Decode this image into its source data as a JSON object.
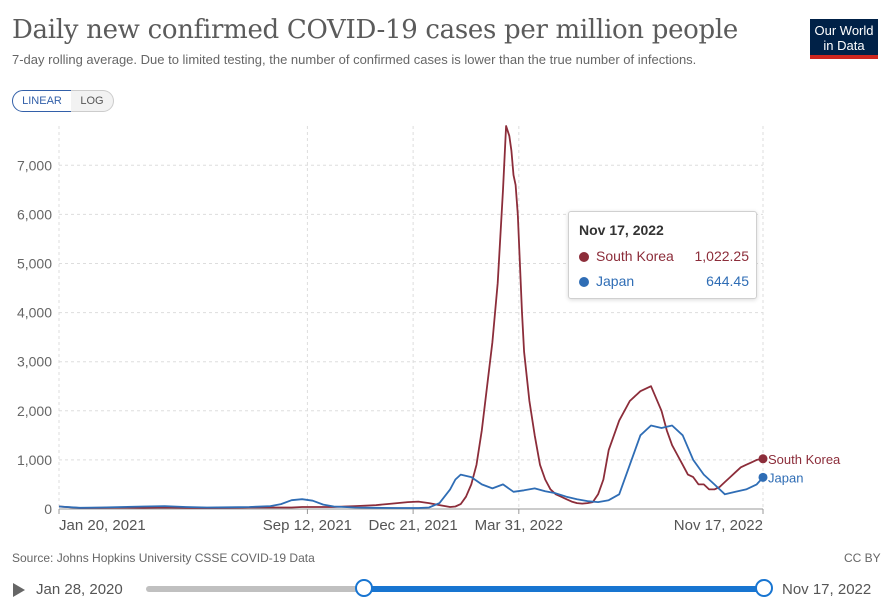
{
  "header": {
    "title": "Daily new confirmed COVID-19 cases per million people",
    "subtitle": "7-day rolling average. Due to limited testing, the number of confirmed cases is lower than the true number of infections.",
    "logo_line1": "Our World",
    "logo_line2": "in Data"
  },
  "controls": {
    "linear_label": "LINEAR",
    "log_label": "LOG"
  },
  "tooltip": {
    "date": "Nov 17, 2022",
    "rows": [
      {
        "name": "South Korea",
        "value": "1,022.25",
        "color": "#8c2d3a"
      },
      {
        "name": "Japan",
        "value": "644.45",
        "color": "#2f6db5"
      }
    ]
  },
  "footer": {
    "source": "Source: Johns Hopkins University CSSE COVID-19 Data",
    "license": "CC BY"
  },
  "timeline": {
    "start_label": "Jan 28, 2020",
    "end_label": "Nov 17, 2022",
    "selected_start_fraction": 0.352,
    "selected_end_fraction": 1.0
  },
  "chart_data": {
    "type": "line",
    "title": "Daily new confirmed COVID-19 cases per million people",
    "xlabel": "",
    "ylabel": "",
    "x_range_days": [
      0,
      666
    ],
    "x_start_date": "2021-01-20",
    "ylim": [
      0,
      7800
    ],
    "yticks": [
      0,
      1000,
      2000,
      3000,
      4000,
      5000,
      6000,
      7000
    ],
    "ytick_labels": [
      "0",
      "1,000",
      "2,000",
      "3,000",
      "4,000",
      "5,000",
      "6,000",
      "7,000"
    ],
    "xticks": [
      {
        "day": 0,
        "label": "Jan 20, 2021"
      },
      {
        "day": 235,
        "label": "Sep 12, 2021"
      },
      {
        "day": 335,
        "label": "Dec 21, 2021"
      },
      {
        "day": 435,
        "label": "Mar 31, 2022"
      },
      {
        "day": 666,
        "label": "Nov 17, 2022"
      }
    ],
    "grid": true,
    "series": [
      {
        "name": "South Korea",
        "color": "#8c2d3a",
        "end_value": 1022.25,
        "days": [
          0,
          20,
          40,
          60,
          80,
          100,
          120,
          140,
          160,
          180,
          200,
          220,
          230,
          240,
          250,
          260,
          270,
          280,
          290,
          300,
          310,
          320,
          330,
          340,
          350,
          360,
          370,
          375,
          380,
          385,
          390,
          395,
          400,
          405,
          410,
          415,
          420,
          423,
          426,
          428,
          430,
          432,
          434,
          436,
          438,
          440,
          445,
          450,
          455,
          460,
          465,
          470,
          475,
          480,
          485,
          490,
          495,
          500,
          505,
          510,
          515,
          520,
          530,
          540,
          550,
          560,
          570,
          575,
          580,
          585,
          590,
          595,
          600,
          605,
          610,
          615,
          620,
          625,
          630,
          635,
          640,
          645,
          650,
          655,
          660,
          666
        ],
        "values": [
          50,
          20,
          25,
          30,
          25,
          30,
          25,
          20,
          25,
          30,
          30,
          30,
          40,
          40,
          40,
          40,
          50,
          60,
          70,
          80,
          100,
          120,
          140,
          150,
          120,
          80,
          40,
          50,
          100,
          250,
          500,
          900,
          1600,
          2500,
          3400,
          4600,
          6500,
          7800,
          7600,
          7300,
          6800,
          6600,
          6000,
          5000,
          4000,
          3200,
          2200,
          1500,
          900,
          600,
          400,
          300,
          250,
          200,
          150,
          120,
          110,
          120,
          140,
          300,
          600,
          1200,
          1800,
          2200,
          2400,
          2500,
          2000,
          1600,
          1300,
          1100,
          900,
          700,
          650,
          500,
          500,
          400,
          400,
          450,
          550,
          650,
          750,
          850,
          900,
          950,
          1000,
          1022
        ]
      },
      {
        "name": "Japan",
        "color": "#2f6db5",
        "end_value": 644.45,
        "days": [
          0,
          20,
          40,
          60,
          80,
          100,
          120,
          140,
          160,
          180,
          200,
          210,
          220,
          230,
          240,
          250,
          260,
          280,
          300,
          320,
          340,
          350,
          360,
          370,
          375,
          380,
          390,
          400,
          410,
          420,
          430,
          440,
          450,
          460,
          470,
          480,
          490,
          500,
          510,
          520,
          530,
          540,
          550,
          560,
          570,
          580,
          590,
          600,
          610,
          620,
          630,
          640,
          650,
          660,
          666
        ],
        "values": [
          50,
          25,
          30,
          40,
          50,
          60,
          40,
          30,
          35,
          40,
          60,
          100,
          180,
          200,
          170,
          90,
          50,
          30,
          25,
          20,
          20,
          30,
          120,
          400,
          600,
          700,
          650,
          500,
          420,
          500,
          350,
          380,
          420,
          360,
          320,
          250,
          200,
          160,
          140,
          180,
          300,
          900,
          1500,
          1700,
          1650,
          1700,
          1500,
          1000,
          700,
          500,
          300,
          350,
          400,
          500,
          644
        ]
      }
    ]
  }
}
